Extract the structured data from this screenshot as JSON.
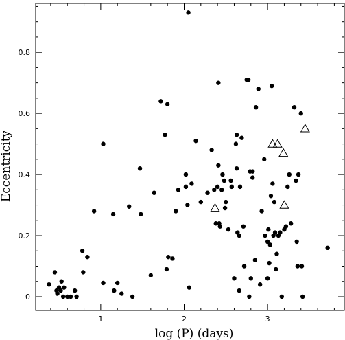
{
  "chart_data": {
    "type": "scatter",
    "xlabel": "log (P) (days)",
    "ylabel": "Eccentricity",
    "xlim": [
      0.22,
      3.92
    ],
    "ylim": [
      -0.045,
      0.96
    ],
    "x_ticks": [
      {
        "value": 1,
        "label": "1"
      },
      {
        "value": 2,
        "label": "2"
      },
      {
        "value": 3,
        "label": "3"
      }
    ],
    "y_ticks": [
      {
        "value": 0,
        "label": "0"
      },
      {
        "value": 0.2,
        "label": "0.2"
      },
      {
        "value": 0.4,
        "label": "0.4"
      },
      {
        "value": 0.6,
        "label": "0.6"
      },
      {
        "value": 0.8,
        "label": "0.8"
      }
    ],
    "grid": false,
    "series": [
      {
        "marker": "filled-circle",
        "color": "#000000",
        "points": [
          [
            0.38,
            0.04
          ],
          [
            0.45,
            0.08
          ],
          [
            0.47,
            0.02
          ],
          [
            0.48,
            0.01
          ],
          [
            0.5,
            0.03
          ],
          [
            0.52,
            0.02
          ],
          [
            0.53,
            0.05
          ],
          [
            0.55,
            0.0
          ],
          [
            0.56,
            0.03
          ],
          [
            0.6,
            0.0
          ],
          [
            0.64,
            0.0
          ],
          [
            0.69,
            0.02
          ],
          [
            0.71,
            0.0
          ],
          [
            0.78,
            0.15
          ],
          [
            0.79,
            0.08
          ],
          [
            0.84,
            0.13
          ],
          [
            0.92,
            0.28
          ],
          [
            1.03,
            0.5
          ],
          [
            1.03,
            0.045
          ],
          [
            1.15,
            0.27
          ],
          [
            1.16,
            0.02
          ],
          [
            1.2,
            0.045
          ],
          [
            1.25,
            0.01
          ],
          [
            1.34,
            0.295
          ],
          [
            1.38,
            0.0
          ],
          [
            1.47,
            0.42
          ],
          [
            1.48,
            0.27
          ],
          [
            1.6,
            0.07
          ],
          [
            1.64,
            0.34
          ],
          [
            1.72,
            0.64
          ],
          [
            1.77,
            0.53
          ],
          [
            1.79,
            0.09
          ],
          [
            1.8,
            0.63
          ],
          [
            1.81,
            0.13
          ],
          [
            1.86,
            0.125
          ],
          [
            1.9,
            0.28
          ],
          [
            1.93,
            0.35
          ],
          [
            2.02,
            0.4
          ],
          [
            2.02,
            0.36
          ],
          [
            2.04,
            0.3
          ],
          [
            2.05,
            0.93
          ],
          [
            2.06,
            0.03
          ],
          [
            2.09,
            0.37
          ],
          [
            2.14,
            0.51
          ],
          [
            2.2,
            0.31
          ],
          [
            2.28,
            0.34
          ],
          [
            2.33,
            0.48
          ],
          [
            2.36,
            0.35
          ],
          [
            2.38,
            0.24
          ],
          [
            2.4,
            0.36
          ],
          [
            2.41,
            0.7
          ],
          [
            2.41,
            0.43
          ],
          [
            2.42,
            0.24
          ],
          [
            2.43,
            0.23
          ],
          [
            2.45,
            0.35
          ],
          [
            2.46,
            0.4
          ],
          [
            2.48,
            0.38
          ],
          [
            2.49,
            0.29
          ],
          [
            2.5,
            0.31
          ],
          [
            2.53,
            0.22
          ],
          [
            2.56,
            0.38
          ],
          [
            2.57,
            0.36
          ],
          [
            2.6,
            0.06
          ],
          [
            2.62,
            0.5
          ],
          [
            2.63,
            0.42
          ],
          [
            2.63,
            0.53
          ],
          [
            2.64,
            0.21
          ],
          [
            2.66,
            0.2
          ],
          [
            2.66,
            0.02
          ],
          [
            2.67,
            0.36
          ],
          [
            2.69,
            0.52
          ],
          [
            2.71,
            0.23
          ],
          [
            2.72,
            0.1
          ],
          [
            2.75,
            0.71
          ],
          [
            2.77,
            0.71
          ],
          [
            2.78,
            0.0
          ],
          [
            2.79,
            0.41
          ],
          [
            2.8,
            0.06
          ],
          [
            2.82,
            0.41
          ],
          [
            2.82,
            0.39
          ],
          [
            2.85,
            0.12
          ],
          [
            2.86,
            0.62
          ],
          [
            2.89,
            0.68
          ],
          [
            2.91,
            0.04
          ],
          [
            2.93,
            0.28
          ],
          [
            2.96,
            0.45
          ],
          [
            2.97,
            0.2
          ],
          [
            3.0,
            0.06
          ],
          [
            3.0,
            0.18
          ],
          [
            3.01,
            0.22
          ],
          [
            3.02,
            0.11
          ],
          [
            3.03,
            0.17
          ],
          [
            3.04,
            0.33
          ],
          [
            3.05,
            0.69
          ],
          [
            3.06,
            0.37
          ],
          [
            3.07,
            0.2
          ],
          [
            3.08,
            0.31
          ],
          [
            3.09,
            0.21
          ],
          [
            3.1,
            0.09
          ],
          [
            3.11,
            0.14
          ],
          [
            3.13,
            0.2
          ],
          [
            3.15,
            0.21
          ],
          [
            3.17,
            0.0
          ],
          [
            3.2,
            0.22
          ],
          [
            3.22,
            0.23
          ],
          [
            3.24,
            0.36
          ],
          [
            3.26,
            0.4
          ],
          [
            3.28,
            0.24
          ],
          [
            3.32,
            0.62
          ],
          [
            3.34,
            0.38
          ],
          [
            3.35,
            0.18
          ],
          [
            3.36,
            0.1
          ],
          [
            3.37,
            0.4
          ],
          [
            3.4,
            0.6
          ],
          [
            3.41,
            0.1
          ],
          [
            3.42,
            0.0
          ],
          [
            3.72,
            0.16
          ]
        ]
      },
      {
        "marker": "open-triangle",
        "color": "#000000",
        "points": [
          [
            2.37,
            0.29
          ],
          [
            3.06,
            0.5
          ],
          [
            3.12,
            0.5
          ],
          [
            3.19,
            0.47
          ],
          [
            3.2,
            0.3
          ],
          [
            3.45,
            0.55
          ]
        ]
      }
    ]
  }
}
